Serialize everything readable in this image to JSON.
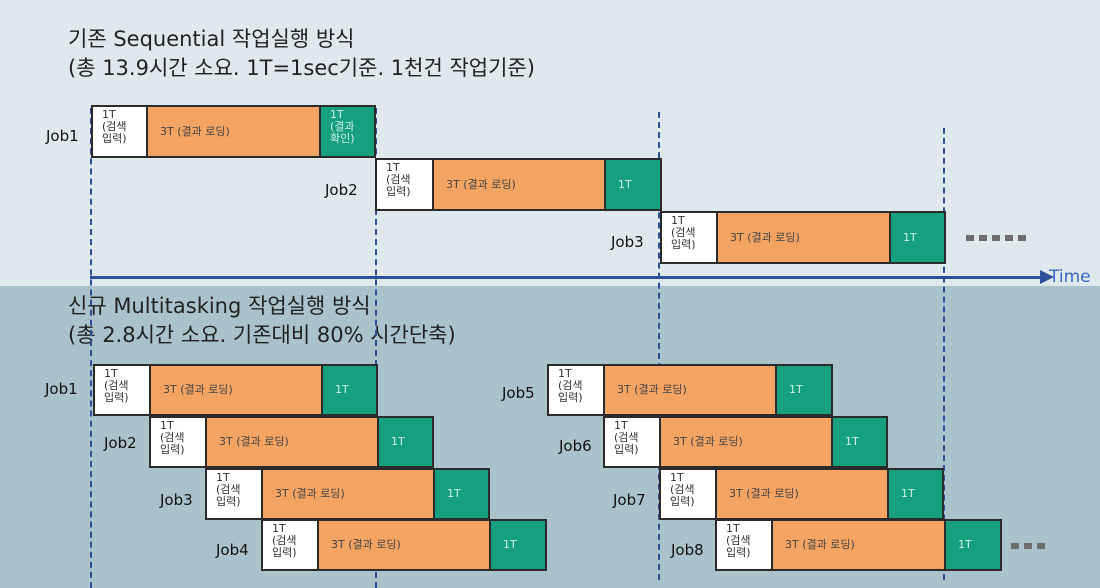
{
  "titles": {
    "sequential": "기존 Sequential 작업실행 방식",
    "sequential_sub": "(총 13.9시간 소요. 1T=1sec기준. 1천건 작업기준)",
    "multitasking": "신규 Multitasking 작업실행 방식",
    "multitasking_sub": "(총 2.8시간 소요. 기존대비 80% 시간단축)"
  },
  "axis": {
    "label": "Time"
  },
  "labels": {
    "input": "1T\n(검색\n입력)",
    "loading": "3T (결과 로딩)",
    "confirm_first": "1T\n(결과\n확인)",
    "confirm": "1T"
  },
  "sequential_jobs": [
    "Job1",
    "Job2",
    "Job3"
  ],
  "multitasking_jobs": [
    "Job1",
    "Job2",
    "Job3",
    "Job4",
    "Job5",
    "Job6",
    "Job7",
    "Job8"
  ],
  "colors": {
    "input": "#ffffff",
    "loading": "#f4a462",
    "confirm": "#16a07f",
    "border": "#2b2b2b",
    "time_axis": "#2c4f9a",
    "time_label": "#3a66c9",
    "top_background": "#dfe8ec",
    "bottom_background": "#aac2cb"
  }
}
